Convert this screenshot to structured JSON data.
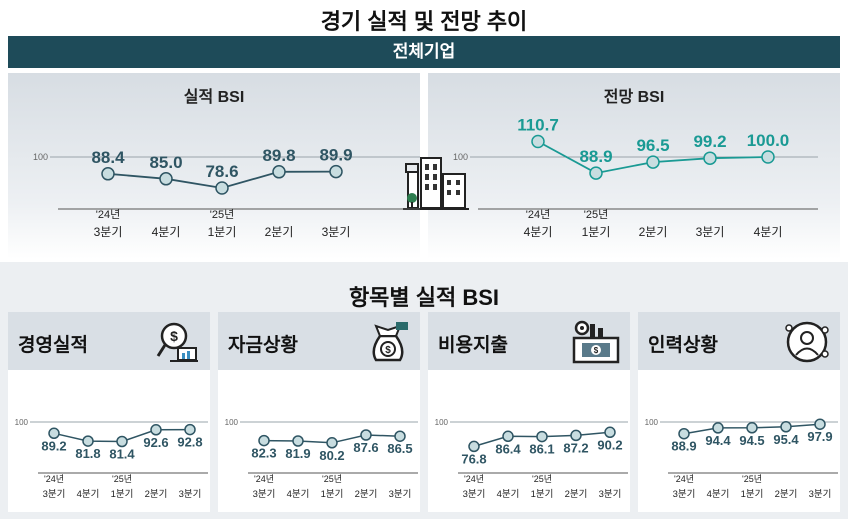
{
  "main_title": "경기 실적 및 전망 추이",
  "banner": "전체기업",
  "section2_title": "항목별 실적 BSI",
  "colors": {
    "banner": "#1e4b59",
    "performance_line": "#2f5563",
    "outlook_line": "#1a9a94",
    "marker_fill": "#c8dde0"
  },
  "chart_data": [
    {
      "id": "perf",
      "type": "line",
      "title": "실적 BSI",
      "reference_label": "100",
      "categories": [
        [
          "'24년",
          "3분기"
        ],
        [
          "",
          "4분기"
        ],
        [
          "'25년",
          "1분기"
        ],
        [
          "",
          "2분기"
        ],
        [
          "",
          "3분기"
        ]
      ],
      "values": [
        88.4,
        85.0,
        78.6,
        89.8,
        89.9
      ],
      "labels": [
        "88.4",
        "85.0",
        "78.6",
        "89.8",
        "89.9"
      ]
    },
    {
      "id": "outlook",
      "type": "line",
      "title": "전망 BSI",
      "reference_label": "100",
      "categories": [
        [
          "'24년",
          "4분기"
        ],
        [
          "'25년",
          "1분기"
        ],
        [
          "",
          "2분기"
        ],
        [
          "",
          "3분기"
        ],
        [
          "",
          "4분기"
        ]
      ],
      "values": [
        110.7,
        88.9,
        96.5,
        99.2,
        100.0
      ],
      "labels": [
        "110.7",
        "88.9",
        "96.5",
        "99.2",
        "100.0"
      ]
    },
    {
      "id": "mgmt",
      "type": "line",
      "title": "경영실적",
      "icon": "money-analysis-icon",
      "reference_label": "100",
      "categories": [
        [
          "'24년",
          "3분기"
        ],
        [
          "",
          "4분기"
        ],
        [
          "'25년",
          "1분기"
        ],
        [
          "",
          "2분기"
        ],
        [
          "",
          "3분기"
        ]
      ],
      "values": [
        89.2,
        81.8,
        81.4,
        92.6,
        92.8
      ],
      "labels": [
        "89.2",
        "81.8",
        "81.4",
        "92.6",
        "92.8"
      ]
    },
    {
      "id": "fund",
      "type": "line",
      "title": "자금상황",
      "icon": "money-bag-icon",
      "reference_label": "100",
      "categories": [
        [
          "'24년",
          "3분기"
        ],
        [
          "",
          "4분기"
        ],
        [
          "'25년",
          "1분기"
        ],
        [
          "",
          "2분기"
        ],
        [
          "",
          "3분기"
        ]
      ],
      "values": [
        82.3,
        81.9,
        80.2,
        87.6,
        86.5
      ],
      "labels": [
        "82.3",
        "81.9",
        "80.2",
        "87.6",
        "86.5"
      ]
    },
    {
      "id": "cost",
      "type": "line",
      "title": "비용지출",
      "icon": "factory-cost-icon",
      "reference_label": "100",
      "categories": [
        [
          "'24년",
          "3분기"
        ],
        [
          "",
          "4분기"
        ],
        [
          "'25년",
          "1분기"
        ],
        [
          "",
          "2분기"
        ],
        [
          "",
          "3분기"
        ]
      ],
      "values": [
        76.8,
        86.4,
        86.1,
        87.2,
        90.2
      ],
      "labels": [
        "76.8",
        "86.4",
        "86.1",
        "87.2",
        "90.2"
      ]
    },
    {
      "id": "hr",
      "type": "line",
      "title": "인력상황",
      "icon": "staff-network-icon",
      "reference_label": "100",
      "categories": [
        [
          "'24년",
          "3분기"
        ],
        [
          "",
          "4분기"
        ],
        [
          "'25년",
          "1분기"
        ],
        [
          "",
          "2분기"
        ],
        [
          "",
          "3분기"
        ]
      ],
      "values": [
        88.9,
        94.4,
        94.5,
        95.4,
        97.9
      ],
      "labels": [
        "88.9",
        "94.4",
        "94.5",
        "95.4",
        "97.9"
      ]
    }
  ]
}
